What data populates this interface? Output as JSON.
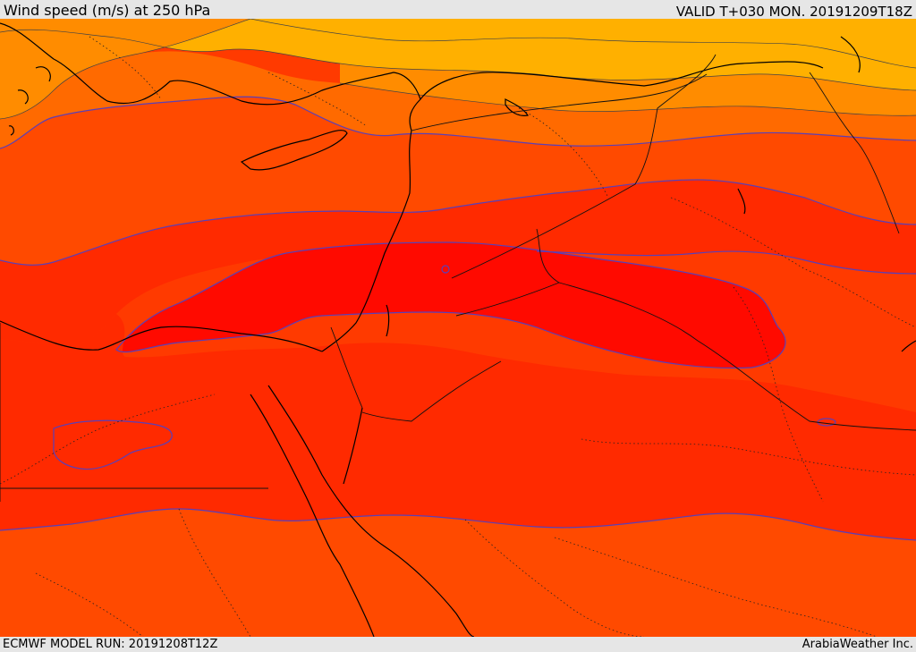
{
  "header": {
    "title": "Wind speed (m/s) at 250 hPa",
    "valid_time": "VALID T+030 MON. 20191209T18Z"
  },
  "footer": {
    "model_run": "ECMWF MODEL RUN: 20191208T12Z",
    "credit": "ArabiaWeather Inc."
  },
  "map": {
    "field": "wind speed at 250 hPa",
    "shading_colors": [
      "#ffff00",
      "#ffd800",
      "#ffb000",
      "#ff8c00",
      "#ff6a00",
      "#ff4a00",
      "#ff2a00",
      "#ff0a00"
    ],
    "contour_color": "#5a3fb8",
    "land_border_color": "#000000"
  }
}
